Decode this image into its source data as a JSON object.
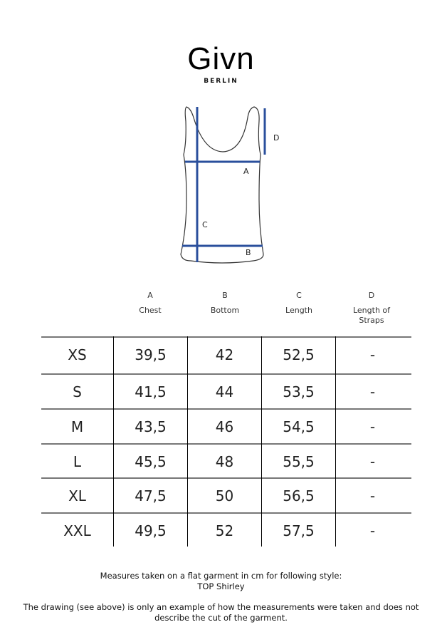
{
  "brand": {
    "name": "Givn",
    "subtitle": "BERLIN"
  },
  "diagram": {
    "labels": {
      "a": "A",
      "b": "B",
      "c": "C",
      "d": "D"
    },
    "line_color": "#2a4f9c"
  },
  "columns": [
    {
      "letter": "A",
      "name": "Chest"
    },
    {
      "letter": "B",
      "name": "Bottom"
    },
    {
      "letter": "C",
      "name": "Length"
    },
    {
      "letter": "D",
      "name": "Length of Straps"
    }
  ],
  "rows": [
    {
      "size": "XS",
      "values": [
        "39,5",
        "42",
        "52,5",
        "-"
      ]
    },
    {
      "size": "S",
      "values": [
        "41,5",
        "44",
        "53,5",
        "-"
      ]
    },
    {
      "size": "M",
      "values": [
        "43,5",
        "46",
        "54,5",
        "-"
      ]
    },
    {
      "size": "L",
      "values": [
        "45,5",
        "48",
        "55,5",
        "-"
      ]
    },
    {
      "size": "XL",
      "values": [
        "47,5",
        "50",
        "56,5",
        "-"
      ]
    },
    {
      "size": "XXL",
      "values": [
        "49,5",
        "52",
        "57,5",
        "-"
      ]
    }
  ],
  "notes": {
    "line1": "Measures taken on a flat garment in cm for following style:",
    "line2": "TOP Shirley",
    "line3": "The drawing (see above) is only an example of how the measurements were taken and does not describe the cut of the garment."
  }
}
